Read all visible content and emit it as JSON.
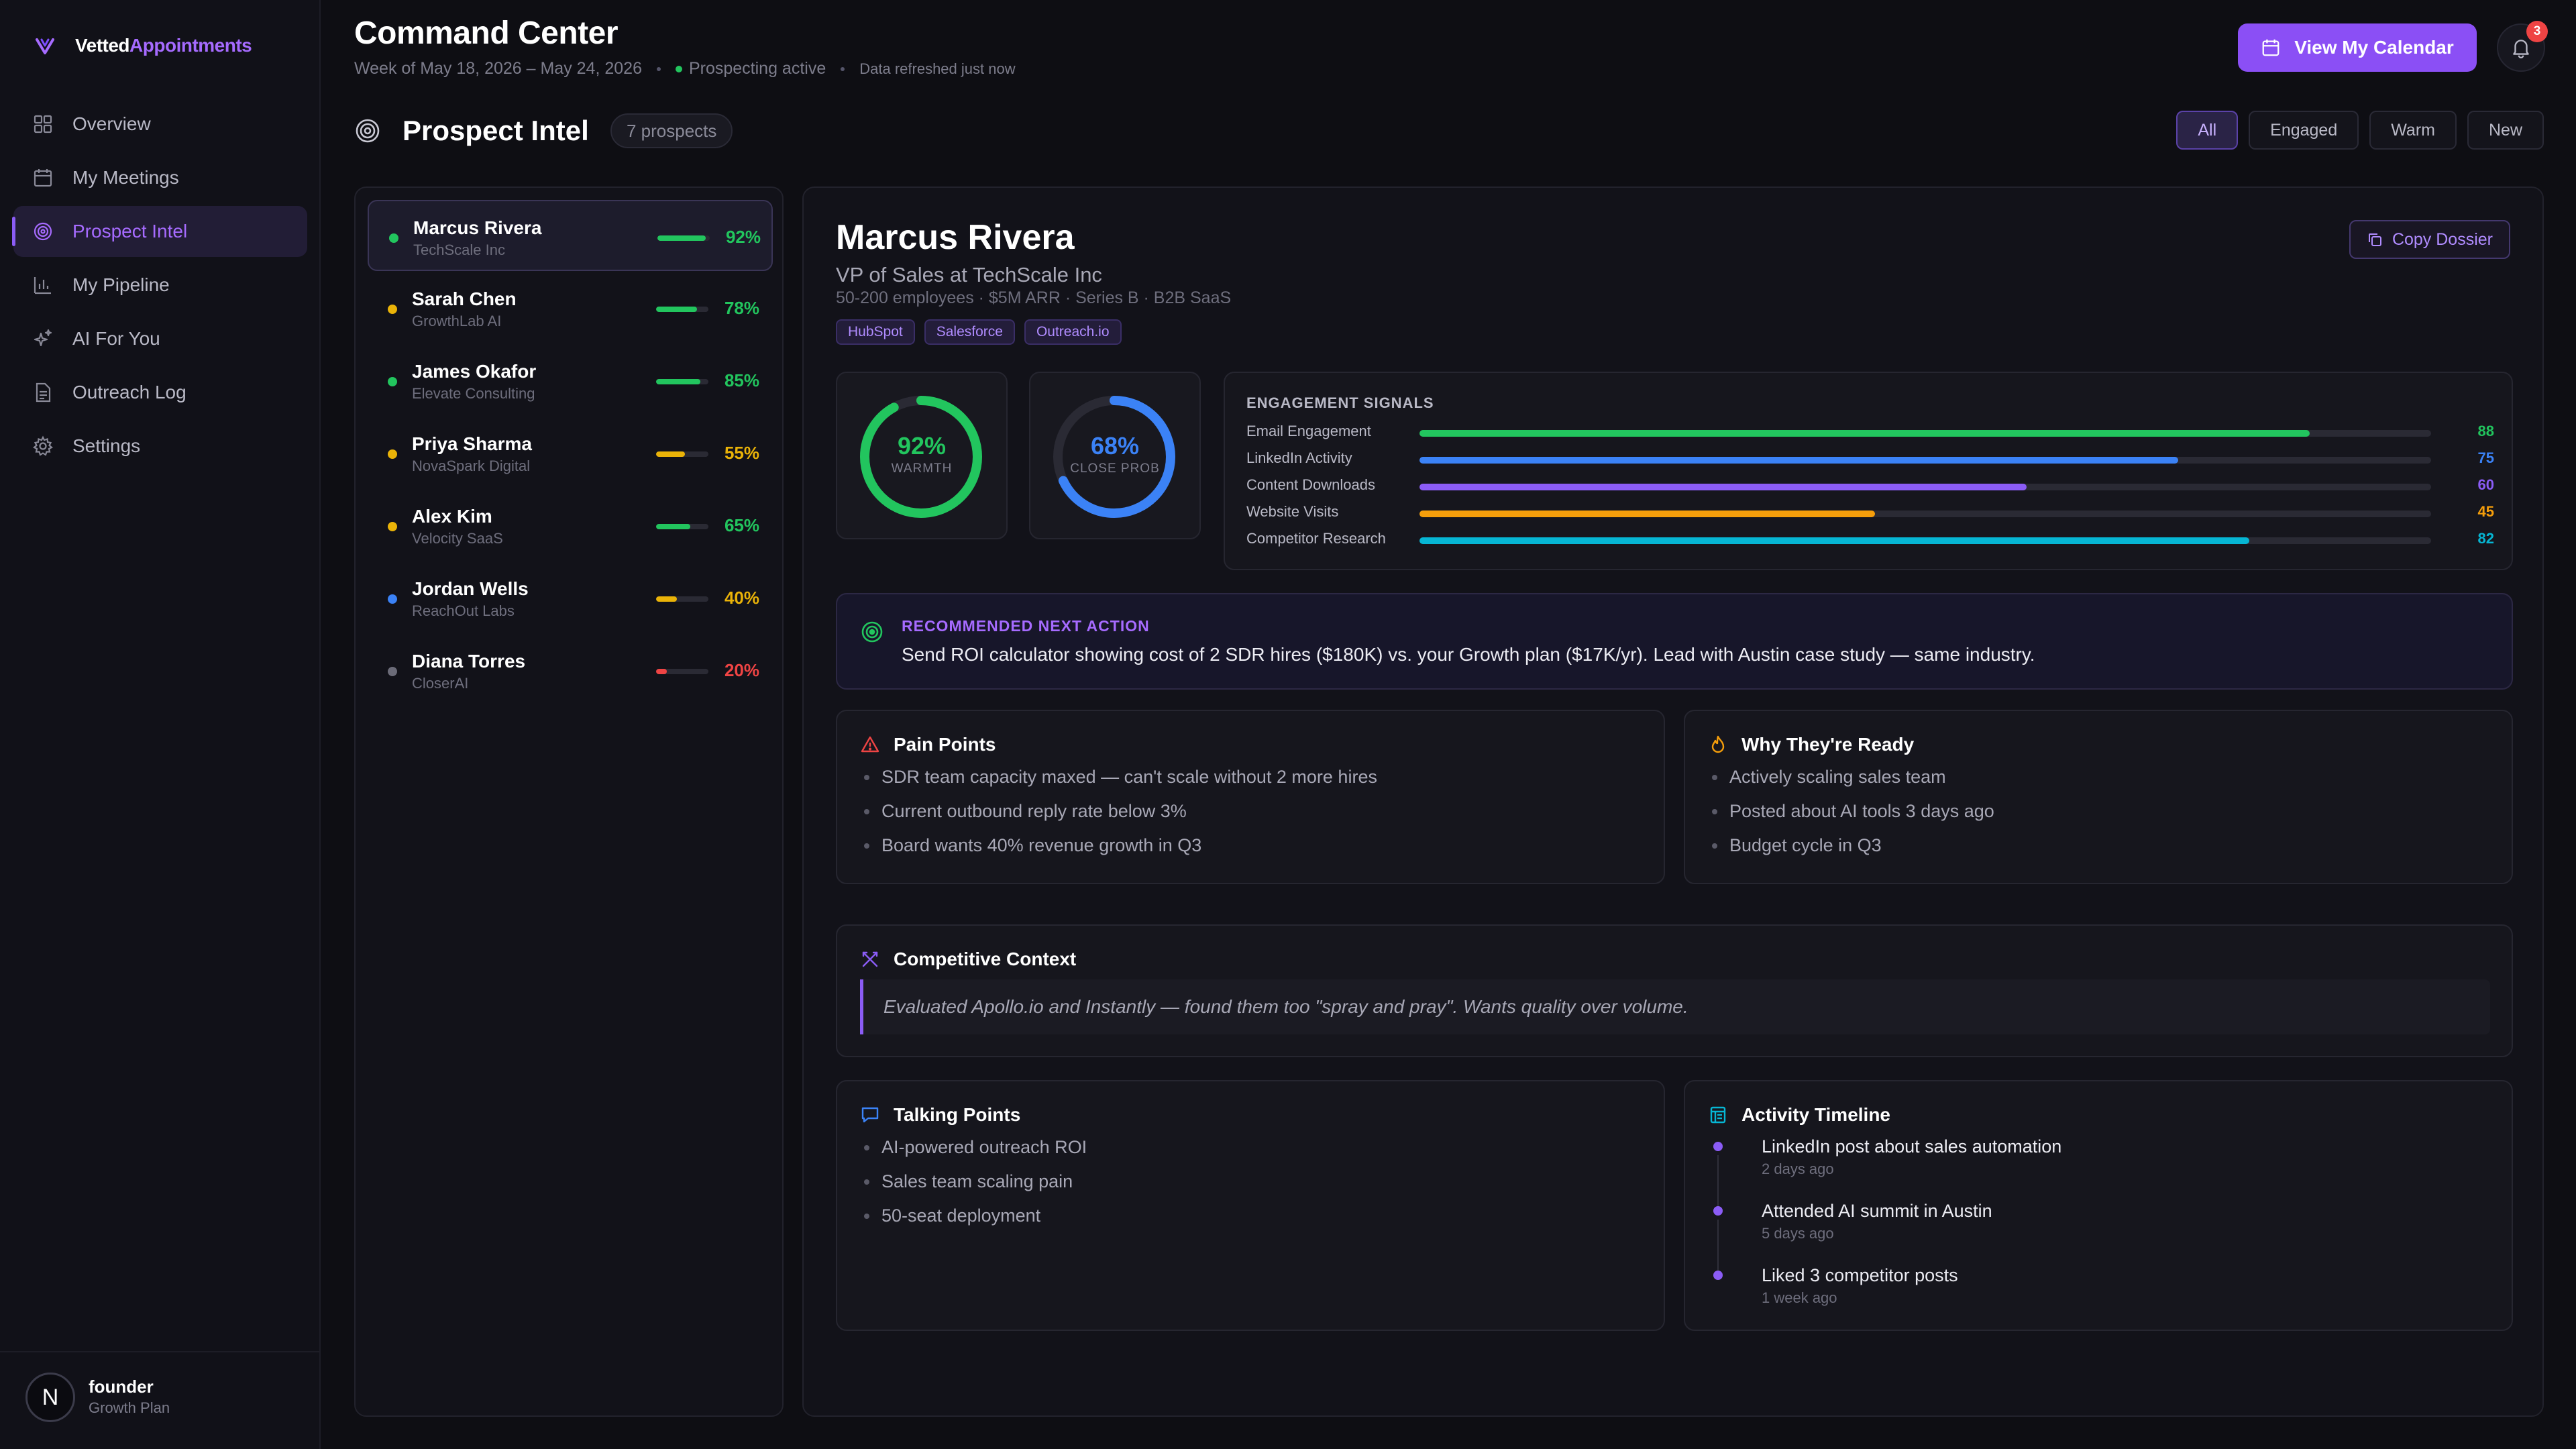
{
  "brand": {
    "name_prefix": "Vetted",
    "name_suffix": "Appointments"
  },
  "sidebar": {
    "items": [
      {
        "label": "Overview",
        "icon": "grid-icon"
      },
      {
        "label": "My Meetings",
        "icon": "calendar-icon"
      },
      {
        "label": "Prospect Intel",
        "icon": "target-icon",
        "active": true
      },
      {
        "label": "My Pipeline",
        "icon": "bar-chart-icon"
      },
      {
        "label": "AI For You",
        "icon": "sparkles-icon"
      },
      {
        "label": "Outreach Log",
        "icon": "document-icon"
      },
      {
        "label": "Settings",
        "icon": "gear-icon"
      }
    ],
    "user": {
      "initial": "N",
      "name": "founder",
      "plan": "Growth Plan"
    }
  },
  "header": {
    "title": "Command Center",
    "week": "Week of May 18, 2026 – May 24, 2026",
    "status": "Prospecting active",
    "refreshed": "Data refreshed just now",
    "calendar_button": "View My Calendar",
    "notification_count": "3"
  },
  "section": {
    "title": "Prospect Intel",
    "count": "7 prospects",
    "filters": [
      "All",
      "Engaged",
      "Warm",
      "New"
    ],
    "active_filter": "All"
  },
  "prospects": [
    {
      "name": "Marcus Rivera",
      "company": "TechScale Inc",
      "score": "92%",
      "score_value": 92,
      "color": "#22c55e",
      "dot": "#22c55e",
      "active": true
    },
    {
      "name": "Sarah Chen",
      "company": "GrowthLab AI",
      "score": "78%",
      "score_value": 78,
      "color": "#22c55e",
      "dot": "#eab308"
    },
    {
      "name": "James Okafor",
      "company": "Elevate Consulting",
      "score": "85%",
      "score_value": 85,
      "color": "#22c55e",
      "dot": "#22c55e"
    },
    {
      "name": "Priya Sharma",
      "company": "NovaSpark Digital",
      "score": "55%",
      "score_value": 55,
      "color": "#eab308",
      "dot": "#eab308"
    },
    {
      "name": "Alex Kim",
      "company": "Velocity SaaS",
      "score": "65%",
      "score_value": 65,
      "color": "#22c55e",
      "dot": "#eab308"
    },
    {
      "name": "Jordan Wells",
      "company": "ReachOut Labs",
      "score": "40%",
      "score_value": 40,
      "color": "#eab308",
      "dot": "#3b82f6"
    },
    {
      "name": "Diana Torres",
      "company": "CloserAI",
      "score": "20%",
      "score_value": 20,
      "color": "#ef4444",
      "dot": "#6b6b78"
    }
  ],
  "detail": {
    "name": "Marcus Rivera",
    "role": "VP of Sales at TechScale Inc",
    "meta": "50-200 employees · $5M ARR · Series B · B2B SaaS",
    "tags": [
      "HubSpot",
      "Salesforce",
      "Outreach.io"
    ],
    "copy_button": "Copy Dossier",
    "warmth": {
      "value": "92%",
      "fraction": 0.92,
      "label": "WARMTH",
      "color": "#22c55e"
    },
    "close_prob": {
      "value": "68%",
      "fraction": 0.68,
      "label": "CLOSE PROB",
      "color": "#3b82f6"
    },
    "signals": {
      "title": "ENGAGEMENT SIGNALS",
      "items": [
        {
          "label": "Email Engagement",
          "value": 88,
          "color": "#22c55e"
        },
        {
          "label": "LinkedIn Activity",
          "value": 75,
          "color": "#3b82f6"
        },
        {
          "label": "Content Downloads",
          "value": 60,
          "color": "#8b5cf6"
        },
        {
          "label": "Website Visits",
          "value": 45,
          "color": "#f59e0b"
        },
        {
          "label": "Competitor Research",
          "value": 82,
          "color": "#06b6d4"
        }
      ]
    },
    "recommendation": {
      "label": "RECOMMENDED NEXT ACTION",
      "text": "Send ROI calculator showing cost of 2 SDR hires ($180K) vs. your Growth plan ($17K/yr). Lead with Austin case study — same industry."
    },
    "pain_points": {
      "title": "Pain Points",
      "items": [
        "SDR team capacity maxed — can't scale without 2 more hires",
        "Current outbound reply rate below 3%",
        "Board wants 40% revenue growth in Q3"
      ]
    },
    "why_ready": {
      "title": "Why They're Ready",
      "items": [
        "Actively scaling sales team",
        "Posted about AI tools 3 days ago",
        "Budget cycle in Q3"
      ]
    },
    "competitive": {
      "title": "Competitive Context",
      "quote": "Evaluated Apollo.io and Instantly — found them too \"spray and pray\". Wants quality over volume."
    },
    "talking_points": {
      "title": "Talking Points",
      "items": [
        "AI-powered outreach ROI",
        "Sales team scaling pain",
        "50-seat deployment"
      ]
    },
    "timeline": {
      "title": "Activity Timeline",
      "items": [
        {
          "title": "LinkedIn post about sales automation",
          "time": "2 days ago"
        },
        {
          "title": "Attended AI summit in Austin",
          "time": "5 days ago"
        },
        {
          "title": "Liked 3 competitor posts",
          "time": "1 week ago"
        }
      ]
    }
  }
}
